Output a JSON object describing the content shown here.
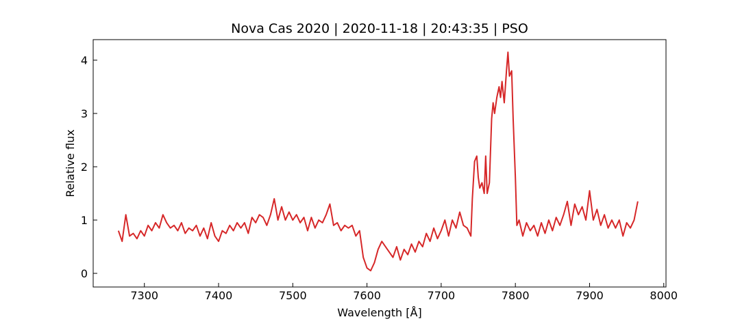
{
  "chart_data": {
    "type": "line",
    "title": "Nova Cas 2020 | 2020-11-18 | 20:43:35 | PSO",
    "xlabel": "Wavelength [Å]",
    "ylabel": "Relative flux",
    "color": "#d62728",
    "grid": false,
    "xlim": [
      7231,
      8003
    ],
    "ylim": [
      -0.256,
      4.385
    ],
    "xticks": [
      7300,
      7400,
      7500,
      7600,
      7700,
      7800,
      7900,
      8000
    ],
    "yticks": [
      0,
      1,
      2,
      3,
      4
    ],
    "x": [
      7265,
      7270,
      7275,
      7280,
      7285,
      7290,
      7295,
      7300,
      7305,
      7310,
      7315,
      7320,
      7325,
      7330,
      7335,
      7340,
      7345,
      7350,
      7355,
      7360,
      7365,
      7370,
      7375,
      7380,
      7385,
      7390,
      7395,
      7400,
      7405,
      7410,
      7415,
      7420,
      7425,
      7430,
      7435,
      7440,
      7445,
      7450,
      7455,
      7460,
      7465,
      7470,
      7475,
      7480,
      7485,
      7490,
      7495,
      7500,
      7505,
      7510,
      7515,
      7520,
      7525,
      7530,
      7535,
      7540,
      7545,
      7550,
      7555,
      7560,
      7565,
      7570,
      7575,
      7580,
      7585,
      7590,
      7595,
      7600,
      7605,
      7610,
      7615,
      7620,
      7625,
      7630,
      7635,
      7640,
      7645,
      7650,
      7655,
      7660,
      7665,
      7670,
      7675,
      7680,
      7685,
      7690,
      7695,
      7700,
      7705,
      7710,
      7715,
      7720,
      7725,
      7730,
      7735,
      7740,
      7742,
      7745,
      7748,
      7750,
      7752,
      7755,
      7758,
      7760,
      7762,
      7765,
      7768,
      7770,
      7772,
      7775,
      7778,
      7780,
      7782,
      7785,
      7788,
      7790,
      7792,
      7795,
      7797,
      7800,
      7802,
      7805,
      7810,
      7815,
      7820,
      7825,
      7830,
      7835,
      7840,
      7845,
      7850,
      7855,
      7860,
      7865,
      7870,
      7875,
      7880,
      7885,
      7890,
      7895,
      7900,
      7905,
      7910,
      7915,
      7920,
      7925,
      7930,
      7935,
      7940,
      7945,
      7950,
      7955,
      7960,
      7965
    ],
    "values": [
      0.8,
      0.6,
      1.1,
      0.7,
      0.75,
      0.65,
      0.8,
      0.7,
      0.9,
      0.8,
      0.95,
      0.85,
      1.1,
      0.95,
      0.85,
      0.9,
      0.8,
      0.95,
      0.75,
      0.85,
      0.8,
      0.9,
      0.7,
      0.85,
      0.65,
      0.95,
      0.7,
      0.6,
      0.8,
      0.75,
      0.9,
      0.8,
      0.95,
      0.85,
      0.95,
      0.75,
      1.05,
      0.95,
      1.1,
      1.05,
      0.9,
      1.1,
      1.4,
      1.0,
      1.25,
      1.0,
      1.15,
      1.0,
      1.1,
      0.95,
      1.05,
      0.8,
      1.05,
      0.85,
      1.0,
      0.95,
      1.1,
      1.3,
      0.9,
      0.95,
      0.8,
      0.9,
      0.85,
      0.9,
      0.7,
      0.8,
      0.3,
      0.1,
      0.05,
      0.2,
      0.45,
      0.6,
      0.5,
      0.4,
      0.3,
      0.5,
      0.25,
      0.45,
      0.35,
      0.55,
      0.4,
      0.6,
      0.5,
      0.75,
      0.6,
      0.85,
      0.65,
      0.8,
      1.0,
      0.7,
      1.0,
      0.85,
      1.15,
      0.9,
      0.85,
      0.7,
      1.4,
      2.1,
      2.2,
      1.8,
      1.6,
      1.7,
      1.5,
      2.2,
      1.5,
      1.7,
      2.9,
      3.2,
      3.0,
      3.3,
      3.5,
      3.3,
      3.6,
      3.2,
      3.8,
      4.15,
      3.7,
      3.8,
      2.9,
      1.8,
      0.9,
      1.0,
      0.7,
      0.95,
      0.8,
      0.9,
      0.7,
      0.95,
      0.75,
      1.0,
      0.8,
      1.05,
      0.9,
      1.1,
      1.35,
      0.9,
      1.3,
      1.1,
      1.25,
      1.0,
      1.55,
      1.0,
      1.2,
      0.9,
      1.1,
      0.85,
      1.0,
      0.85,
      1.0,
      0.7,
      0.95,
      0.85,
      1.0,
      1.35
    ]
  }
}
